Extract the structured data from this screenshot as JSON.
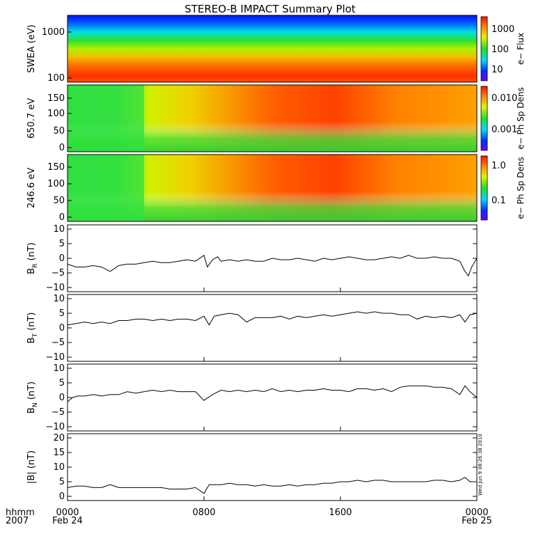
{
  "title": "STEREO-B IMPACT Summary Plot",
  "stamp": "Wed Jun  9 08:26:38 2010",
  "x_axis": {
    "row1": "hhmm",
    "row2": "2007",
    "ticks": [
      {
        "label": "0000",
        "sub": "Feb 24",
        "hour": 0
      },
      {
        "label": "0800",
        "sub": "",
        "hour": 8
      },
      {
        "label": "1600",
        "sub": "",
        "hour": 16
      },
      {
        "label": "0000",
        "sub": "Feb 25",
        "hour": 24
      }
    ]
  },
  "spectrograms": [
    {
      "ylabel": "SWEA (eV)",
      "cblabel": "e− Flux",
      "yticks": [
        "1000",
        "100"
      ],
      "cbticks": [
        "1000",
        "100",
        "10"
      ]
    },
    {
      "ylabel": "650.7 eV",
      "cblabel": "e− Ph Sp Dens",
      "yticks": [
        "150",
        "100",
        "50",
        "0"
      ],
      "cbticks": [
        "0.010",
        "0.001"
      ]
    },
    {
      "ylabel": "246.6 eV",
      "cblabel": "e− Ph Sp Dens",
      "yticks": [
        "150",
        "100",
        "50",
        "0"
      ],
      "cbticks": [
        "1.0",
        "0.1"
      ]
    }
  ],
  "chart_data": [
    {
      "type": "line",
      "name": "BR",
      "ylabel": "B_R (nT)",
      "ylim": [
        -10,
        10
      ],
      "yticks": [
        "10",
        "5",
        "0",
        "−5",
        "−10"
      ],
      "x_hours": [
        0,
        0.5,
        1,
        1.5,
        2,
        2.5,
        3,
        3.5,
        4,
        4.5,
        5,
        5.5,
        6,
        6.5,
        7,
        7.5,
        8,
        8.2,
        8.5,
        8.8,
        9,
        9.5,
        10,
        10.5,
        11,
        11.5,
        12,
        12.5,
        13,
        13.5,
        14,
        14.5,
        15,
        15.5,
        16,
        16.5,
        17,
        17.5,
        18,
        18.5,
        19,
        19.5,
        20,
        20.5,
        21,
        21.5,
        22,
        22.5,
        23,
        23.3,
        23.5,
        23.7,
        24
      ],
      "y": [
        -2,
        -3,
        -3,
        -2.5,
        -3,
        -4.5,
        -2.5,
        -2,
        -2,
        -1.5,
        -1,
        -1.5,
        -1.5,
        -1,
        -0.5,
        -1,
        1,
        -3,
        -0.5,
        0.5,
        -1,
        -0.5,
        -1,
        -0.5,
        -1,
        -1,
        0,
        -0.5,
        -0.5,
        0,
        -0.5,
        -1,
        0,
        -0.5,
        0,
        0.5,
        0,
        -0.5,
        -0.5,
        0,
        0.5,
        0,
        1,
        0,
        0,
        0.5,
        0,
        0,
        -1,
        -4.5,
        -6,
        -3,
        0
      ]
    },
    {
      "type": "line",
      "name": "BT",
      "ylabel": "B_T (nT)",
      "ylim": [
        -10,
        10
      ],
      "yticks": [
        "10",
        "5",
        "0",
        "−5",
        "−10"
      ],
      "x_hours": [
        0,
        0.5,
        1,
        1.5,
        2,
        2.5,
        3,
        3.5,
        4,
        4.5,
        5,
        5.5,
        6,
        6.5,
        7,
        7.5,
        8,
        8.3,
        8.6,
        9,
        9.5,
        10,
        10.5,
        11,
        11.5,
        12,
        12.5,
        13,
        13.5,
        14,
        14.5,
        15,
        15.5,
        16,
        16.5,
        17,
        17.5,
        18,
        18.5,
        19,
        19.5,
        20,
        20.5,
        21,
        21.5,
        22,
        22.5,
        23,
        23.3,
        23.6,
        24
      ],
      "y": [
        1,
        1.5,
        2,
        1.5,
        2,
        1.5,
        2.5,
        2.5,
        3,
        3,
        2.5,
        3,
        2.5,
        3,
        3,
        2.5,
        4,
        1,
        4,
        4.5,
        5,
        4.5,
        2,
        3.5,
        3.5,
        3.5,
        4,
        3,
        4,
        3.5,
        4,
        4.5,
        4,
        4.5,
        5,
        5.5,
        5,
        5.5,
        5,
        5,
        4.5,
        4.5,
        3,
        4,
        3.5,
        4,
        3.5,
        4.5,
        2,
        4.5,
        5
      ]
    },
    {
      "type": "line",
      "name": "BN",
      "ylabel": "B_N (nT)",
      "ylim": [
        -10,
        10
      ],
      "yticks": [
        "10",
        "5",
        "0",
        "−5",
        "−10"
      ],
      "x_hours": [
        0,
        0.3,
        0.6,
        1,
        1.5,
        2,
        2.5,
        3,
        3.5,
        4,
        4.5,
        5,
        5.5,
        6,
        6.5,
        7,
        7.5,
        8,
        8.5,
        9,
        9.5,
        10,
        10.5,
        11,
        11.5,
        12,
        12.5,
        13,
        13.5,
        14,
        14.5,
        15,
        15.5,
        16,
        16.5,
        17,
        17.5,
        18,
        18.5,
        19,
        19.5,
        20,
        20.5,
        21,
        21.5,
        22,
        22.5,
        23,
        23.3,
        23.6,
        24
      ],
      "y": [
        -1.5,
        0,
        0.5,
        0.5,
        1,
        0.5,
        1,
        1,
        2,
        1.5,
        2,
        2.5,
        2,
        2.5,
        2,
        2,
        2,
        -1,
        1,
        2.5,
        2,
        2.5,
        2,
        2.5,
        2,
        3,
        2,
        2.5,
        2,
        2.5,
        2.5,
        3,
        2.5,
        2.5,
        2,
        3,
        3,
        2.5,
        3,
        2,
        3.5,
        4,
        4,
        4,
        3.5,
        3.5,
        3,
        1,
        4,
        2,
        0
      ]
    },
    {
      "type": "line",
      "name": "|B|",
      "ylabel": "|B| (nT)",
      "ylim": [
        0,
        20
      ],
      "yticks": [
        "20",
        "15",
        "10",
        "5",
        "0"
      ],
      "x_hours": [
        0,
        0.5,
        1,
        1.5,
        2,
        2.5,
        3,
        3.5,
        4,
        4.5,
        5,
        5.5,
        6,
        6.5,
        7,
        7.5,
        8,
        8.3,
        8.6,
        9,
        9.5,
        10,
        10.5,
        11,
        11.5,
        12,
        12.5,
        13,
        13.5,
        14,
        14.5,
        15,
        15.5,
        16,
        16.5,
        17,
        17.5,
        18,
        18.5,
        19,
        19.5,
        20,
        20.5,
        21,
        21.5,
        22,
        22.5,
        23,
        23.3,
        23.6,
        24
      ],
      "y": [
        3,
        3.5,
        3.5,
        3,
        3,
        4,
        3,
        3,
        3,
        3,
        3,
        3,
        2.5,
        2.5,
        2.5,
        3,
        1,
        4,
        4,
        4,
        4.5,
        4,
        4,
        3.5,
        4,
        3.5,
        3.5,
        4,
        3.5,
        4,
        4,
        4.5,
        4.5,
        5,
        5,
        5.5,
        5,
        5.5,
        5.5,
        5,
        5,
        5,
        5,
        5,
        5.5,
        5.5,
        5,
        5.5,
        6.5,
        5,
        5
      ]
    }
  ]
}
